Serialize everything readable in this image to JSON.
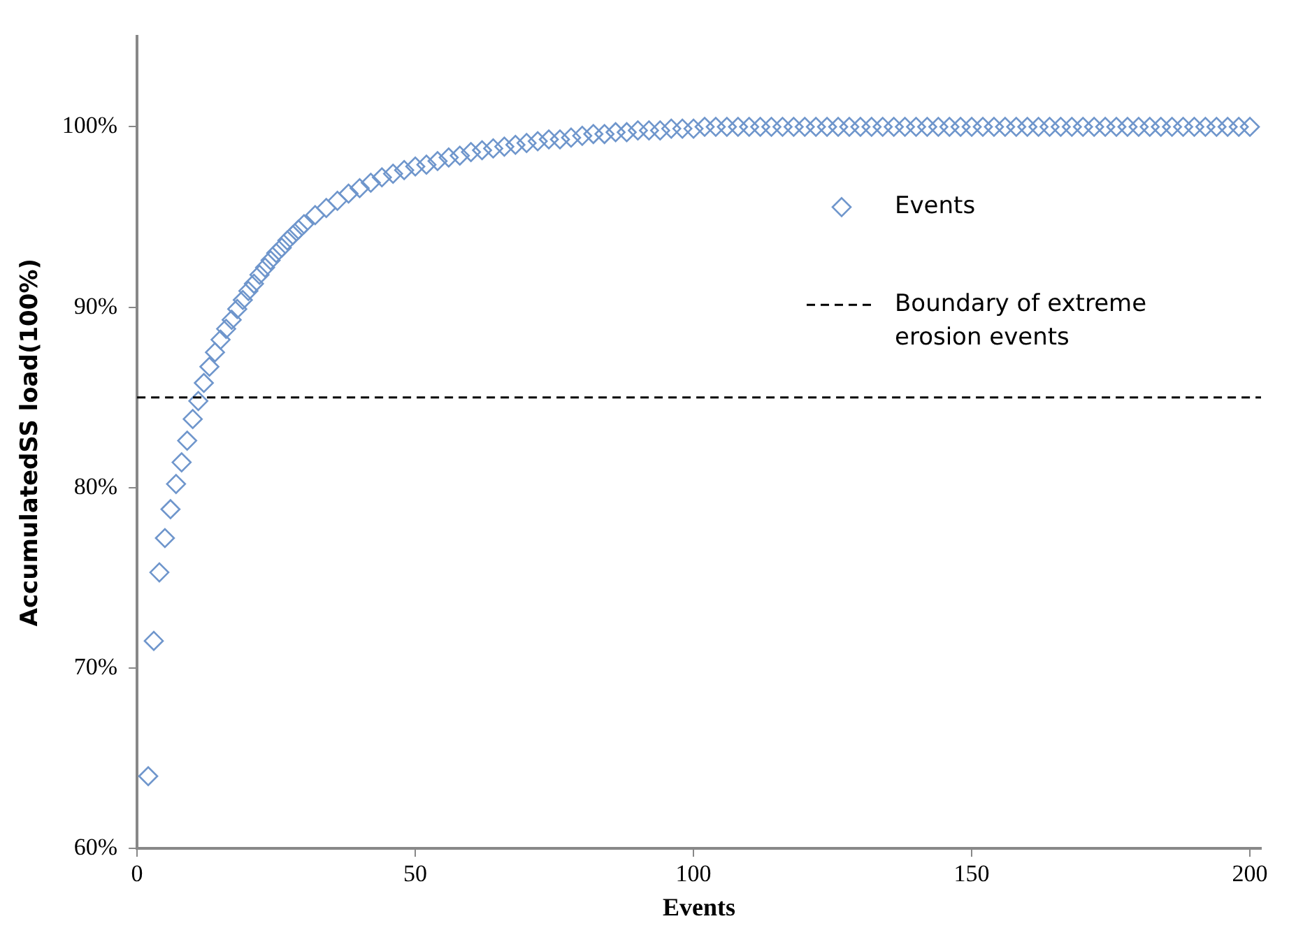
{
  "chart_data": {
    "type": "scatter",
    "xlabel": "Events",
    "ylabel": "AccumulatedSS load(100%)",
    "xlim": [
      0,
      202
    ],
    "xticks": [
      0,
      50,
      100,
      150,
      200
    ],
    "ylim": [
      60,
      105
    ],
    "yticks": [
      {
        "value": 60,
        "label": "60%"
      },
      {
        "value": 70,
        "label": "70%"
      },
      {
        "value": 80,
        "label": "80%"
      },
      {
        "value": 90,
        "label": "90%"
      },
      {
        "value": 100,
        "label": "100%"
      }
    ],
    "grid": false,
    "legend": "top right",
    "marker": "diamond",
    "ref_lines": [
      {
        "axis": "y",
        "value": 85,
        "label": "Boundary of extreme erosion events",
        "color": "#000000",
        "line_style": "dashed"
      }
    ],
    "series": [
      {
        "name": "Events",
        "color": "#6f96cc",
        "x": [
          2,
          3,
          4,
          5,
          6,
          7,
          8,
          9,
          10,
          11,
          12,
          13,
          14,
          15,
          16,
          17,
          18,
          19,
          20,
          21,
          22,
          23,
          24,
          25,
          26,
          27,
          28,
          29,
          30,
          32,
          34,
          36,
          38,
          40,
          42,
          44,
          46,
          48,
          50,
          52,
          54,
          56,
          58,
          60,
          62,
          64,
          66,
          68,
          70,
          72,
          74,
          76,
          78,
          80,
          82,
          84,
          86,
          88,
          90,
          92,
          94,
          96,
          98,
          100,
          102,
          104,
          106,
          108,
          110,
          112,
          114,
          116,
          118,
          120,
          122,
          124,
          126,
          128,
          130,
          132,
          134,
          136,
          138,
          140,
          142,
          144,
          146,
          148,
          150,
          152,
          154,
          156,
          158,
          160,
          162,
          164,
          166,
          168,
          170,
          172,
          174,
          176,
          178,
          180,
          182,
          184,
          186,
          188,
          190,
          192,
          194,
          196,
          198,
          200
        ],
        "values": [
          64,
          71.5,
          75.3,
          77.2,
          78.8,
          80.2,
          81.4,
          82.6,
          83.8,
          84.8,
          85.8,
          86.7,
          87.5,
          88.2,
          88.8,
          89.3,
          89.9,
          90.4,
          90.9,
          91.3,
          91.8,
          92.2,
          92.6,
          93.0,
          93.3,
          93.7,
          94.0,
          94.3,
          94.6,
          95.1,
          95.5,
          95.9,
          96.3,
          96.6,
          96.9,
          97.2,
          97.4,
          97.6,
          97.8,
          97.9,
          98.1,
          98.3,
          98.4,
          98.6,
          98.7,
          98.8,
          98.9,
          99.0,
          99.1,
          99.2,
          99.3,
          99.3,
          99.4,
          99.5,
          99.6,
          99.6,
          99.7,
          99.7,
          99.8,
          99.8,
          99.8,
          99.9,
          99.9,
          99.9,
          100,
          100,
          100,
          100,
          100,
          100,
          100,
          100,
          100,
          100,
          100,
          100,
          100,
          100,
          100,
          100,
          100,
          100,
          100,
          100,
          100,
          100,
          100,
          100,
          100,
          100,
          100,
          100,
          100,
          100,
          100,
          100,
          100,
          100,
          100,
          100,
          100,
          100,
          100,
          100,
          100,
          100,
          100,
          100,
          100,
          100,
          100,
          100,
          100,
          100
        ]
      }
    ]
  }
}
